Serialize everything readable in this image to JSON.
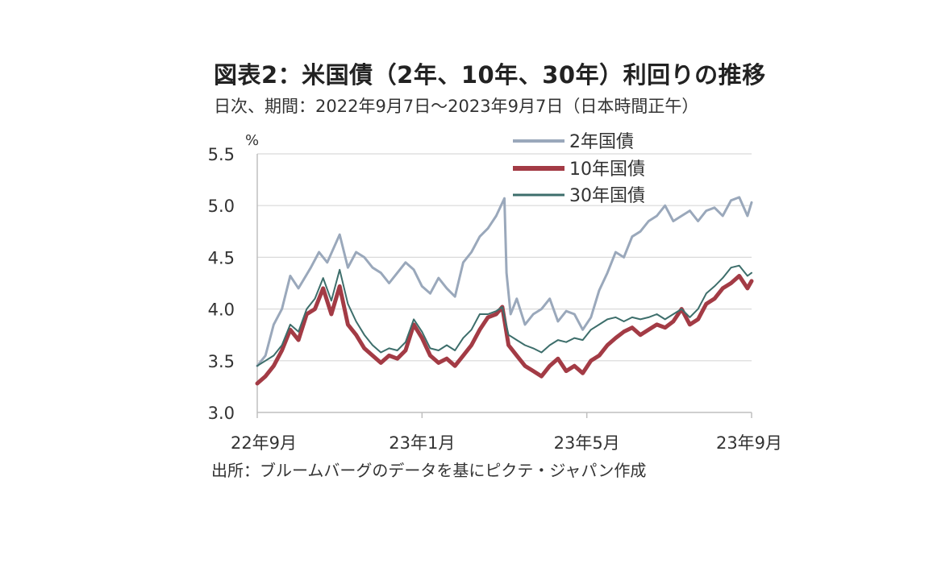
{
  "title": "図表2：米国債（2年、10年、30年）利回りの推移",
  "subtitle": "日次、期間：2022年9月7日～2023年9月7日（日本時間正午）",
  "source": "出所：ブルームバーグのデータを基にピクテ・ジャパン作成",
  "chart_data": {
    "type": "line",
    "yunit": "%",
    "ylim": [
      3.0,
      5.5
    ],
    "yticks": [
      "3.0",
      "3.5",
      "4.0",
      "4.5",
      "5.0",
      "5.5"
    ],
    "xticks": [
      {
        "label": "22年9月",
        "x": 0
      },
      {
        "label": "23年1月",
        "x": 4
      },
      {
        "label": "23年5月",
        "x": 8
      },
      {
        "label": "23年9月",
        "x": 12
      }
    ],
    "xlim": [
      0,
      12
    ],
    "grid": "horizontal",
    "legend_position": "top-right",
    "series": [
      {
        "name": "2年国債",
        "color": "#9aa8bb",
        "x": [
          0.0,
          0.2,
          0.4,
          0.6,
          0.8,
          1.0,
          1.3,
          1.5,
          1.7,
          2.0,
          2.2,
          2.4,
          2.6,
          2.8,
          3.0,
          3.2,
          3.4,
          3.6,
          3.8,
          4.0,
          4.2,
          4.4,
          4.6,
          4.8,
          5.0,
          5.2,
          5.4,
          5.6,
          5.8,
          6.0,
          6.05,
          6.15,
          6.3,
          6.5,
          6.7,
          6.9,
          7.1,
          7.3,
          7.5,
          7.7,
          7.9,
          8.1,
          8.3,
          8.5,
          8.7,
          8.9,
          9.1,
          9.3,
          9.5,
          9.7,
          9.9,
          10.1,
          10.3,
          10.5,
          10.7,
          10.9,
          11.1,
          11.3,
          11.5,
          11.7,
          11.9,
          12.0
        ],
        "values": [
          3.45,
          3.55,
          3.85,
          4.0,
          4.32,
          4.2,
          4.4,
          4.55,
          4.45,
          4.72,
          4.4,
          4.55,
          4.5,
          4.4,
          4.35,
          4.25,
          4.35,
          4.45,
          4.38,
          4.22,
          4.15,
          4.3,
          4.2,
          4.12,
          4.45,
          4.55,
          4.7,
          4.78,
          4.9,
          5.07,
          4.35,
          3.95,
          4.1,
          3.85,
          3.95,
          4.0,
          4.1,
          3.88,
          3.98,
          3.95,
          3.8,
          3.92,
          4.18,
          4.35,
          4.55,
          4.5,
          4.7,
          4.75,
          4.85,
          4.9,
          5.0,
          4.85,
          4.9,
          4.95,
          4.85,
          4.95,
          4.98,
          4.9,
          5.05,
          5.08,
          4.9,
          5.03
        ]
      },
      {
        "name": "10年国債",
        "color": "#a33b45",
        "x": [
          0.0,
          0.2,
          0.4,
          0.6,
          0.8,
          1.0,
          1.2,
          1.4,
          1.6,
          1.8,
          2.0,
          2.2,
          2.4,
          2.6,
          2.8,
          3.0,
          3.2,
          3.4,
          3.6,
          3.8,
          4.0,
          4.2,
          4.4,
          4.6,
          4.8,
          5.0,
          5.2,
          5.4,
          5.6,
          5.8,
          5.95,
          6.1,
          6.3,
          6.5,
          6.7,
          6.9,
          7.1,
          7.3,
          7.5,
          7.7,
          7.9,
          8.1,
          8.3,
          8.5,
          8.7,
          8.9,
          9.1,
          9.3,
          9.5,
          9.7,
          9.9,
          10.1,
          10.3,
          10.5,
          10.7,
          10.9,
          11.1,
          11.3,
          11.5,
          11.7,
          11.9,
          12.0
        ],
        "values": [
          3.28,
          3.35,
          3.45,
          3.6,
          3.8,
          3.7,
          3.95,
          4.0,
          4.2,
          3.95,
          4.22,
          3.85,
          3.75,
          3.62,
          3.55,
          3.48,
          3.55,
          3.52,
          3.6,
          3.85,
          3.72,
          3.55,
          3.48,
          3.52,
          3.45,
          3.55,
          3.65,
          3.8,
          3.92,
          3.95,
          4.02,
          3.65,
          3.55,
          3.45,
          3.4,
          3.35,
          3.45,
          3.52,
          3.4,
          3.45,
          3.38,
          3.5,
          3.55,
          3.65,
          3.72,
          3.78,
          3.82,
          3.75,
          3.8,
          3.85,
          3.82,
          3.88,
          4.0,
          3.85,
          3.9,
          4.05,
          4.1,
          4.2,
          4.25,
          4.32,
          4.2,
          4.27
        ]
      },
      {
        "name": "30年国債",
        "color": "#3d6e6b",
        "x": [
          0.0,
          0.2,
          0.4,
          0.6,
          0.8,
          1.0,
          1.2,
          1.4,
          1.6,
          1.8,
          2.0,
          2.2,
          2.4,
          2.6,
          2.8,
          3.0,
          3.2,
          3.4,
          3.6,
          3.8,
          4.0,
          4.2,
          4.4,
          4.6,
          4.8,
          5.0,
          5.2,
          5.4,
          5.6,
          5.8,
          5.95,
          6.1,
          6.3,
          6.5,
          6.7,
          6.9,
          7.1,
          7.3,
          7.5,
          7.7,
          7.9,
          8.1,
          8.3,
          8.5,
          8.7,
          8.9,
          9.1,
          9.3,
          9.5,
          9.7,
          9.9,
          10.1,
          10.3,
          10.5,
          10.7,
          10.9,
          11.1,
          11.3,
          11.5,
          11.7,
          11.9,
          12.0
        ],
        "values": [
          3.45,
          3.5,
          3.55,
          3.65,
          3.85,
          3.78,
          4.0,
          4.1,
          4.3,
          4.08,
          4.38,
          4.05,
          3.88,
          3.75,
          3.65,
          3.58,
          3.62,
          3.6,
          3.68,
          3.9,
          3.78,
          3.62,
          3.6,
          3.65,
          3.6,
          3.72,
          3.8,
          3.95,
          3.95,
          3.98,
          4.02,
          3.75,
          3.7,
          3.65,
          3.62,
          3.58,
          3.65,
          3.7,
          3.68,
          3.72,
          3.7,
          3.8,
          3.85,
          3.9,
          3.92,
          3.88,
          3.92,
          3.9,
          3.92,
          3.95,
          3.9,
          3.95,
          4.0,
          3.92,
          4.0,
          4.15,
          4.22,
          4.3,
          4.4,
          4.42,
          4.32,
          4.35
        ]
      }
    ]
  }
}
